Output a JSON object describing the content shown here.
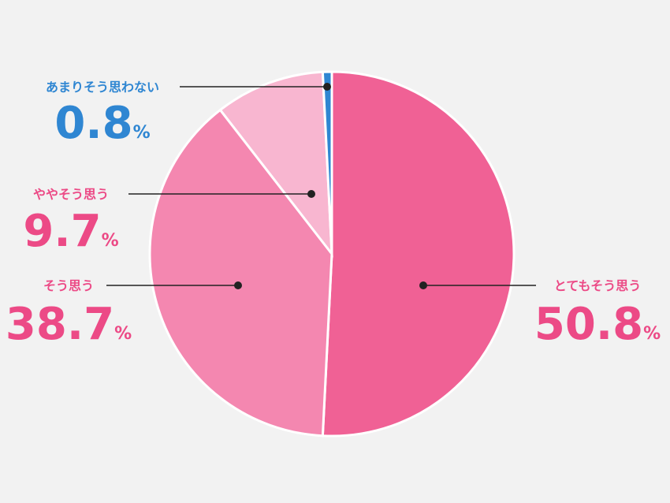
{
  "chart_data": {
    "type": "pie",
    "categories": [
      "とてもそう思う",
      "そう思う",
      "ややそう思う",
      "あまりそう思わない"
    ],
    "values": [
      50.8,
      38.7,
      9.7,
      0.8
    ],
    "value_labels": [
      "50.8%",
      "38.7%",
      "9.7%",
      "0.8%"
    ],
    "colors": [
      "#f06195",
      "#f487b0",
      "#f8b6d0",
      "#2f86d2"
    ],
    "label_colors": [
      "#ec4a86",
      "#ec4a86",
      "#ec4a86",
      "#2f86d2"
    ]
  }
}
